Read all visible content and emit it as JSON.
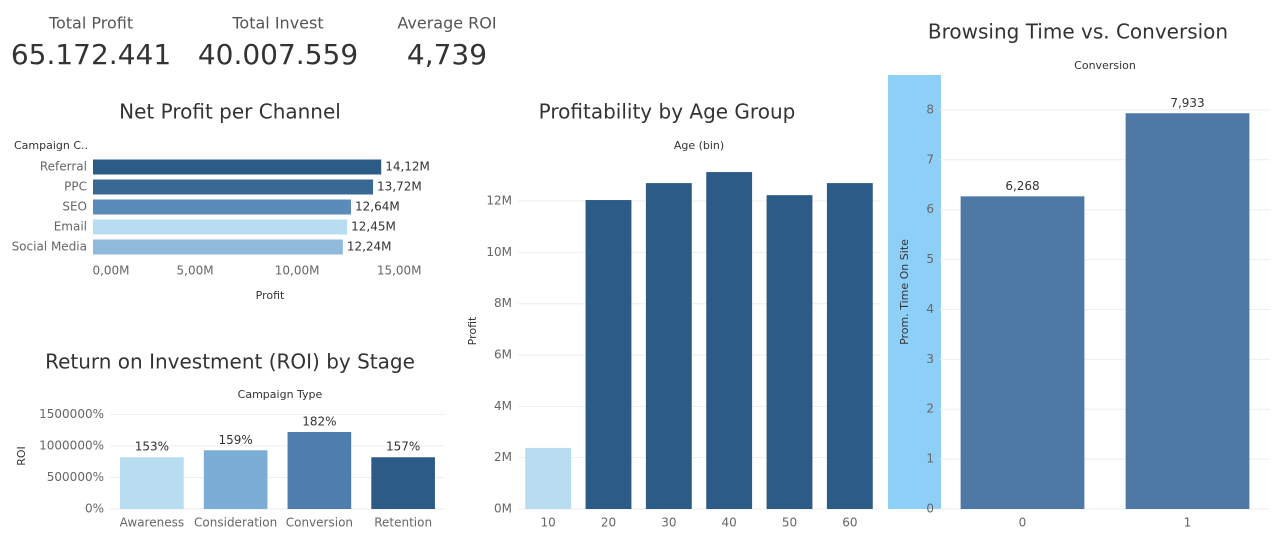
{
  "kpis": [
    {
      "label": "Total Profit",
      "value": "65.172.441"
    },
    {
      "label": "Total Invest",
      "value": "40.007.559"
    },
    {
      "label": "Average ROI",
      "value": "4,739"
    }
  ],
  "chart_data": [
    {
      "type": "hbar",
      "title": "Net Profit per Channel",
      "row_header": "Campaign C..",
      "x_label": "Profit",
      "categories": [
        "Referral",
        "PPC",
        "SEO",
        "Email",
        "Social Media"
      ],
      "values": [
        14120000,
        13720000,
        12640000,
        12450000,
        12240000
      ],
      "value_labels": [
        "14,12M",
        "13,72M",
        "12,64M",
        "12,45M",
        "12,24M"
      ],
      "colors": [
        "#2d5b88",
        "#3a6894",
        "#5b8bb8",
        "#b8dcf0",
        "#8fbadc"
      ],
      "xlim": [
        0,
        17000000
      ],
      "xticks": [
        {
          "value": 0,
          "label": "0,00M"
        },
        {
          "value": 5000000,
          "label": "5,00M"
        },
        {
          "value": 10000000,
          "label": "10,00M"
        },
        {
          "value": 15000000,
          "label": "15,00M"
        }
      ],
      "grid": false
    },
    {
      "type": "bar",
      "title": "Return on Investment (ROI) by Stage",
      "column_header": "Campaign Type",
      "y_label": "ROI",
      "categories": [
        "Awareness",
        "Consideration",
        "Conversion",
        "Retention"
      ],
      "values": [
        820000,
        930000,
        1220000,
        820000
      ],
      "annotations": [
        "153%",
        "159%",
        "182%",
        "157%"
      ],
      "colors": [
        "#b8dcf0",
        "#7aaed4",
        "#4f7eae",
        "#2d5b88"
      ],
      "ylim": [
        0,
        1600000
      ],
      "yticks": [
        {
          "value": 0,
          "label": "0%"
        },
        {
          "value": 500000,
          "label": "500000%"
        },
        {
          "value": 1000000,
          "label": "1000000%"
        },
        {
          "value": 1500000,
          "label": "1500000%"
        }
      ],
      "grid": true
    },
    {
      "type": "bar",
      "title": "Profitability by Age Group",
      "column_header": "Age (bin)",
      "y_label": "Profit",
      "categories": [
        "10",
        "20",
        "30",
        "40",
        "50",
        "60"
      ],
      "values": [
        2380000,
        12040000,
        12700000,
        13130000,
        12230000,
        12700000
      ],
      "colors": [
        "#b8dcf0",
        "#2d5b88",
        "#2d5b88",
        "#2d5b88",
        "#2d5b88",
        "#2d5b88"
      ],
      "ylim": [
        0,
        13600000
      ],
      "yticks": [
        {
          "value": 0,
          "label": "0M"
        },
        {
          "value": 2000000,
          "label": "2M"
        },
        {
          "value": 4000000,
          "label": "4M"
        },
        {
          "value": 6000000,
          "label": "6M"
        },
        {
          "value": 8000000,
          "label": "8M"
        },
        {
          "value": 10000000,
          "label": "10M"
        },
        {
          "value": 12000000,
          "label": "12M"
        }
      ],
      "grid": true
    },
    {
      "type": "bar",
      "title": "Browsing Time vs. Conversion",
      "column_header": "Conversion",
      "y_label": "Prom. Time On Site",
      "categories": [
        "0",
        "1"
      ],
      "values": [
        6.268,
        7.933
      ],
      "value_labels": [
        "6,268",
        "7,933"
      ],
      "colors": [
        "#4e79a7",
        "#4e79a7"
      ],
      "ylim": [
        0,
        8.7
      ],
      "yticks": [
        0,
        1,
        2,
        3,
        4,
        5,
        6,
        7,
        8
      ],
      "grid": true
    }
  ]
}
